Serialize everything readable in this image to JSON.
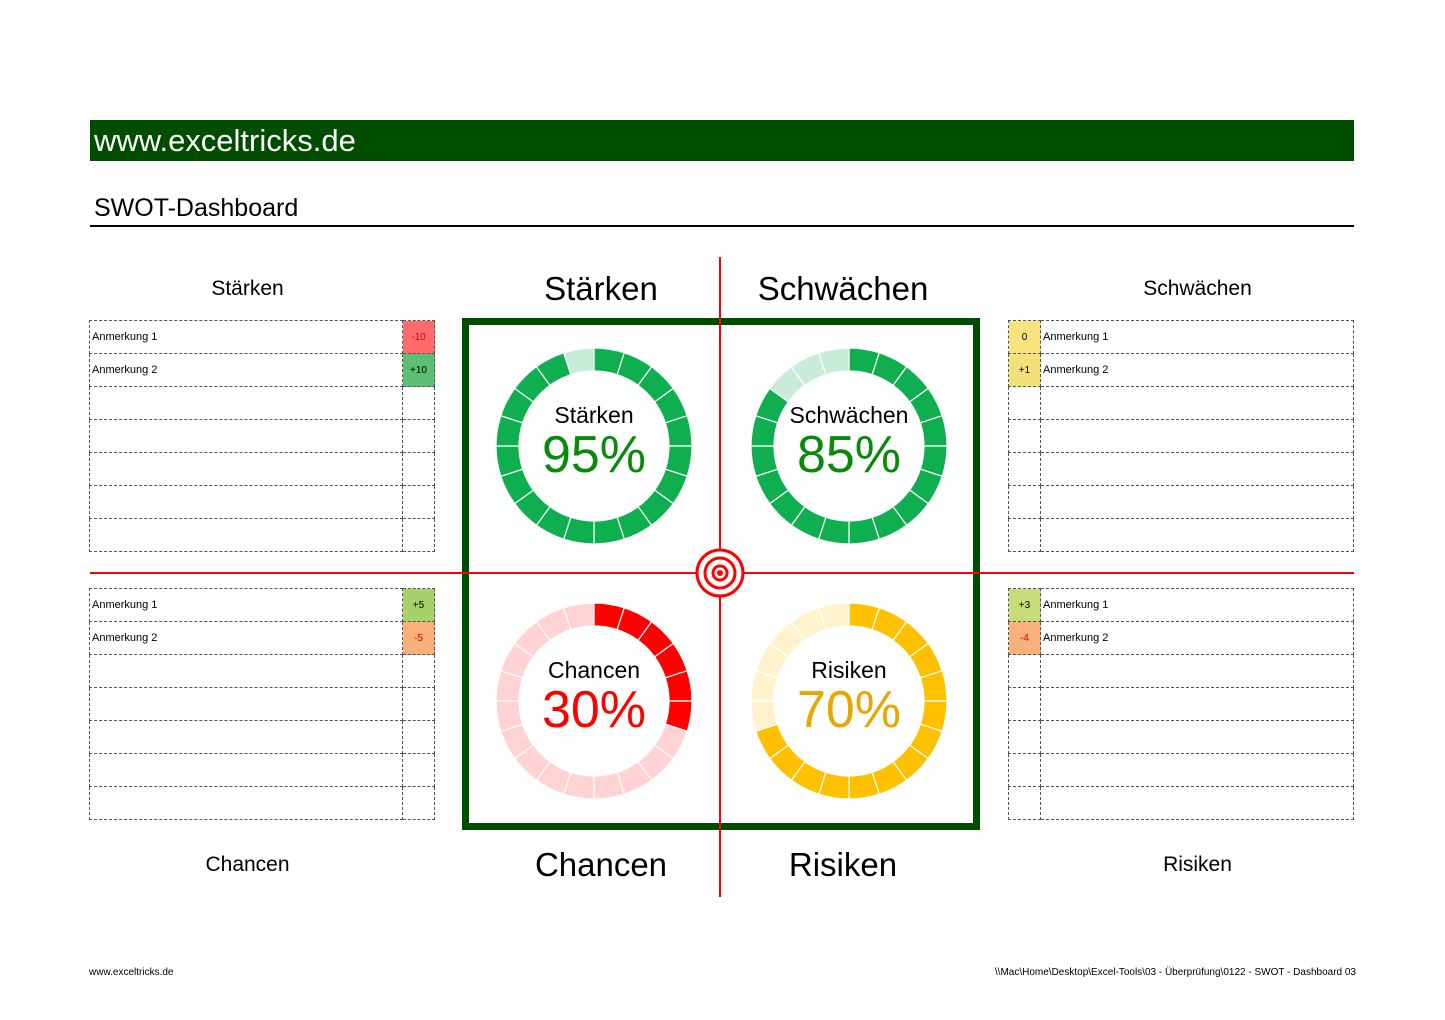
{
  "banner": "www.exceltricks.de",
  "title": "SWOT-Dashboard",
  "tables": {
    "staerken": {
      "heading": "Stärken",
      "rows": [
        {
          "note": "Anmerkung 1",
          "value": "-10",
          "bg": "#ff6b6b",
          "neg": true
        },
        {
          "note": "Anmerkung 2",
          "value": "+10",
          "bg": "#5cbf73",
          "neg": false
        },
        {},
        {},
        {},
        {},
        {}
      ]
    },
    "schwaechen": {
      "heading": "Schwächen",
      "rows": [
        {
          "note": "Anmerkung 1",
          "value": "0",
          "bg": "#f7e47e",
          "neg": false
        },
        {
          "note": "Anmerkung 2",
          "value": "+1",
          "bg": "#f2e07a",
          "neg": false
        },
        {},
        {},
        {},
        {},
        {}
      ]
    },
    "chancen": {
      "heading": "Chancen",
      "rows": [
        {
          "note": "Anmerkung 1",
          "value": "+5",
          "bg": "#a8d06b",
          "neg": false
        },
        {
          "note": "Anmerkung 2",
          "value": "-5",
          "bg": "#f9b07a",
          "neg": true
        },
        {},
        {},
        {},
        {},
        {}
      ]
    },
    "risiken": {
      "heading": "Risiken",
      "rows": [
        {
          "note": "Anmerkung 1",
          "value": "+3",
          "bg": "#c7dc78",
          "neg": false
        },
        {
          "note": "Anmerkung 2",
          "value": "-4",
          "bg": "#f9b07a",
          "neg": true
        },
        {},
        {},
        {},
        {},
        {}
      ]
    }
  },
  "quadrants": {
    "top_left": "Stärken",
    "top_right": "Schwächen",
    "bottom_left": "Chancen",
    "bottom_right": "Risiken"
  },
  "gauges": [
    {
      "label": "Stärken",
      "value_text": "95%",
      "percent": 95,
      "color": "#0fae4f",
      "light": "#c9ecd8",
      "text_color": "#0a8a0a"
    },
    {
      "label": "Schwächen",
      "value_text": "85%",
      "percent": 85,
      "color": "#0fae4f",
      "light": "#c9ecd8",
      "text_color": "#0a8a0a"
    },
    {
      "label": "Chancen",
      "value_text": "30%",
      "percent": 30,
      "color": "#ff0000",
      "light": "#ffd3d3",
      "text_color": "#ff0000"
    },
    {
      "label": "Risiken",
      "value_text": "70%",
      "percent": 70,
      "color": "#ffc000",
      "light": "#fff2cc",
      "text_color": "#e6a800"
    }
  ],
  "footer": {
    "left": "www.exceltricks.de",
    "right": "\\\\Mac\\Home\\Desktop\\Excel-Tools\\03 - Überprüfung\\0122 - SWOT - Dashboard 03"
  }
}
